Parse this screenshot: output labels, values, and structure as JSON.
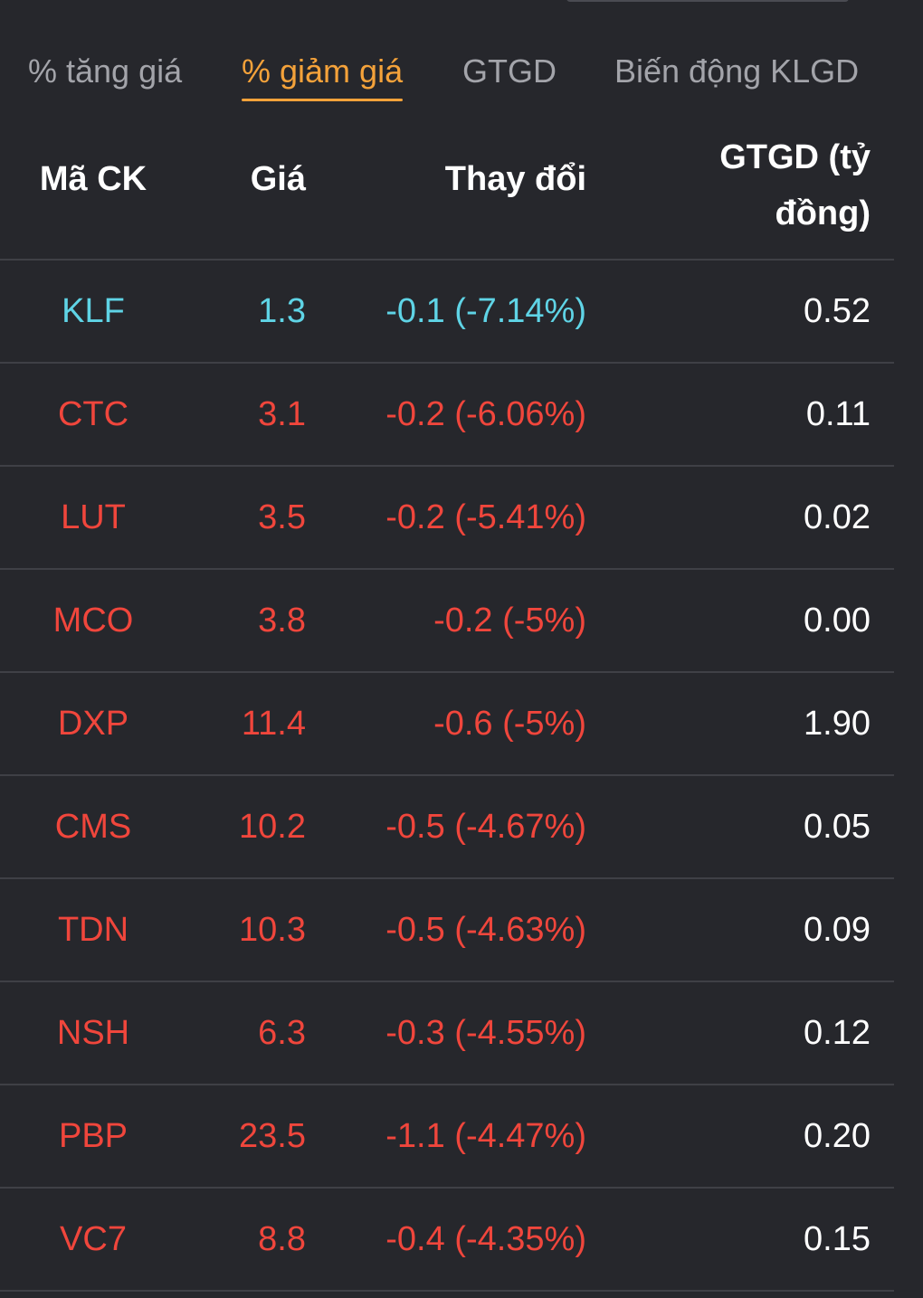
{
  "tabs": [
    {
      "label": "% tăng giá",
      "active": false
    },
    {
      "label": "% giảm giá",
      "active": true
    },
    {
      "label": "GTGD",
      "active": false
    },
    {
      "label": "Biến động KLGD",
      "active": false
    }
  ],
  "colors": {
    "background": "#26272c",
    "active_tab": "#f4a23a",
    "inactive_tab": "#a3a4aa",
    "floor_price": "#5fd4e6",
    "decrease": "#f0463c",
    "divider": "#3f4046"
  },
  "table": {
    "headers": {
      "code": "Mã CK",
      "price": "Giá",
      "change": "Thay đổi",
      "value": "GTGD (tỷ đồng)"
    },
    "rows": [
      {
        "code": "KLF",
        "price": "1.3",
        "change": "-0.1 (-7.14%)",
        "value": "0.52",
        "status": "floor"
      },
      {
        "code": "CTC",
        "price": "3.1",
        "change": "-0.2 (-6.06%)",
        "value": "0.11",
        "status": "down"
      },
      {
        "code": "LUT",
        "price": "3.5",
        "change": "-0.2 (-5.41%)",
        "value": "0.02",
        "status": "down"
      },
      {
        "code": "MCO",
        "price": "3.8",
        "change": "-0.2 (-5%)",
        "value": "0.00",
        "status": "down"
      },
      {
        "code": "DXP",
        "price": "11.4",
        "change": "-0.6 (-5%)",
        "value": "1.90",
        "status": "down"
      },
      {
        "code": "CMS",
        "price": "10.2",
        "change": "-0.5 (-4.67%)",
        "value": "0.05",
        "status": "down"
      },
      {
        "code": "TDN",
        "price": "10.3",
        "change": "-0.5 (-4.63%)",
        "value": "0.09",
        "status": "down"
      },
      {
        "code": "NSH",
        "price": "6.3",
        "change": "-0.3 (-4.55%)",
        "value": "0.12",
        "status": "down"
      },
      {
        "code": "PBP",
        "price": "23.5",
        "change": "-1.1 (-4.47%)",
        "value": "0.20",
        "status": "down"
      },
      {
        "code": "VC7",
        "price": "8.8",
        "change": "-0.4 (-4.35%)",
        "value": "0.15",
        "status": "down"
      }
    ]
  }
}
